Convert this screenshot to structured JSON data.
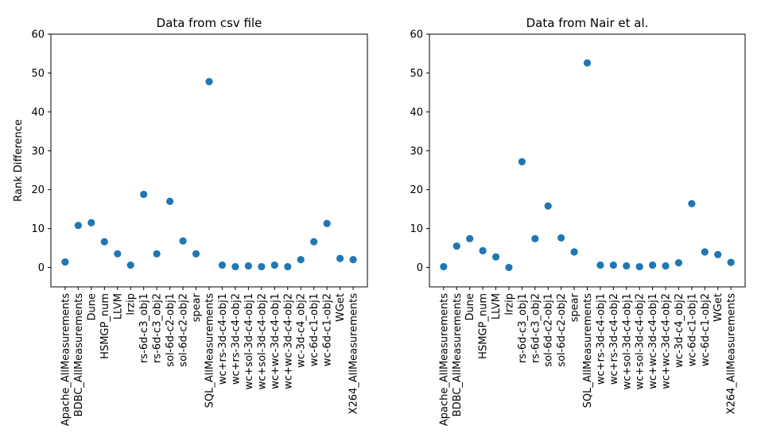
{
  "chart_data": [
    {
      "type": "scatter",
      "title": "Data from csv file",
      "xlabel": "",
      "ylabel": "Rank Difference",
      "ylim": [
        -5,
        60
      ],
      "yticks": [
        0,
        10,
        20,
        30,
        40,
        50,
        60
      ],
      "grid": false,
      "color": "#1f77b4",
      "categories": [
        "Apache_AllMeasurements",
        "BDBC_AllMeasurements",
        "Dune",
        "HSMGP_num",
        "LLVM",
        "lrzip",
        "rs-6d-c3_obj1",
        "rs-6d-c3_obj2",
        "sol-6d-c2-obj1",
        "sol-6d-c2-obj2",
        "spear",
        "SQL_AllMeasurements",
        "wc+rs-3d-c4-obj1",
        "wc+rs-3d-c4-obj2",
        "wc+sol-3d-c4-obj1",
        "wc+sol-3d-c4-obj2",
        "wc+wc-3d-c4-obj1",
        "wc+wc-3d-c4-obj2",
        "wc-3d-c4_obj2",
        "wc-6d-c1-obj1",
        "wc-6d-c1-obj2",
        "WGet",
        "X264_AllMeasurements"
      ],
      "values": [
        1.4,
        10.8,
        11.5,
        6.6,
        3.5,
        0.6,
        18.8,
        3.5,
        17.0,
        6.8,
        3.5,
        47.8,
        0.6,
        0.2,
        0.4,
        0.2,
        0.6,
        0.2,
        2.0,
        6.6,
        11.3,
        2.3,
        2.0
      ]
    },
    {
      "type": "scatter",
      "title": "Data from Nair et al.",
      "xlabel": "",
      "ylabel": "",
      "ylim": [
        -5,
        60
      ],
      "yticks": [
        0,
        10,
        20,
        30,
        40,
        50,
        60
      ],
      "grid": false,
      "color": "#1f77b4",
      "categories": [
        "Apache_AllMeasurements",
        "BDBC_AllMeasurements",
        "Dune",
        "HSMGP_num",
        "LLVM",
        "lrzip",
        "rs-6d-c3_obj1",
        "rs-6d-c3_obj2",
        "sol-6d-c2-obj1",
        "sol-6d-c2-obj2",
        "spear",
        "SQL_AllMeasurements",
        "wc+rs-3d-c4-obj1",
        "wc+rs-3d-c4-obj2",
        "wc+sol-3d-c4-obj1",
        "wc+sol-3d-c4-obj2",
        "wc+wc-3d-c4-obj1",
        "wc+wc-3d-c4-obj2",
        "wc-3d-c4_obj2",
        "wc-6d-c1-obj1",
        "wc-6d-c1-obj2",
        "WGet",
        "X264_AllMeasurements"
      ],
      "values": [
        0.2,
        5.5,
        7.4,
        4.3,
        2.7,
        0.0,
        27.2,
        7.4,
        15.8,
        7.6,
        4.0,
        52.6,
        0.6,
        0.6,
        0.4,
        0.2,
        0.6,
        0.4,
        1.2,
        16.4,
        4.0,
        3.3,
        1.3
      ]
    }
  ]
}
